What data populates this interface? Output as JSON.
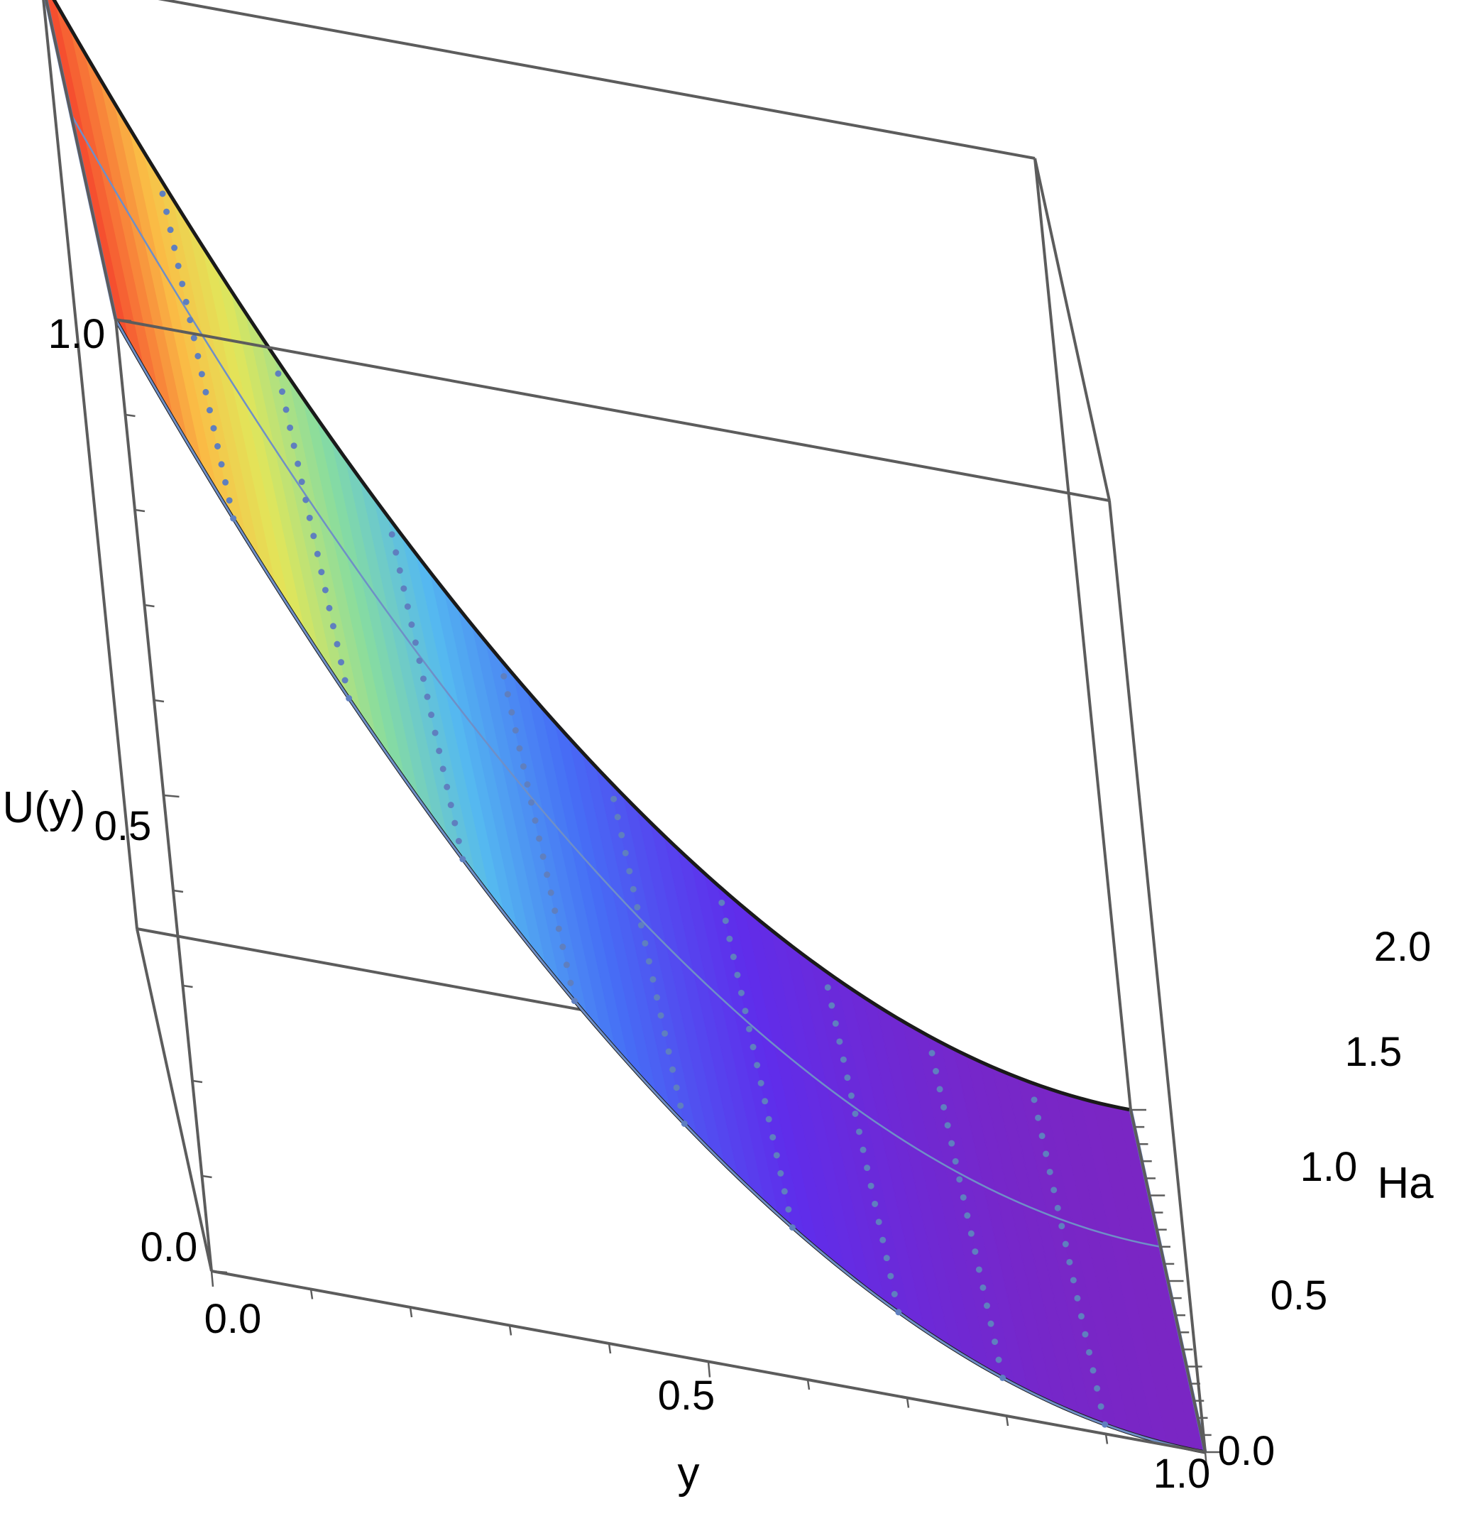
{
  "chart_data": {
    "type": "surface3d",
    "function": "U(y) = (1 - y)^2 over y in [0,1], Ha in [0,2] (surface nearly flat along Ha)",
    "xlabel": "y",
    "ylabel": "Ha",
    "zlabel": "U(y)",
    "xlim": [
      0,
      1
    ],
    "ylim": [
      0,
      2
    ],
    "zlim": [
      0,
      1
    ],
    "x_ticks": [
      "0.0",
      "0.5",
      "1.0"
    ],
    "y_ticks": [
      "0.0",
      "0.5",
      "1.0",
      "1.5",
      "2.0"
    ],
    "z_ticks": [
      "0.0",
      "0.5",
      "1.0"
    ],
    "samples": {
      "y": [
        0.0,
        0.1,
        0.2,
        0.3,
        0.4,
        0.5,
        0.6,
        0.7,
        0.8,
        0.9,
        1.0
      ],
      "U": [
        1.0,
        0.81,
        0.64,
        0.49,
        0.36,
        0.25,
        0.16,
        0.09,
        0.04,
        0.01,
        0.0
      ]
    },
    "colormap": "rainbow (red at U=1 through yellow, green, cyan, blue to purple at U=0)",
    "mesh": "dotted blue mesh lines",
    "grid": false
  }
}
